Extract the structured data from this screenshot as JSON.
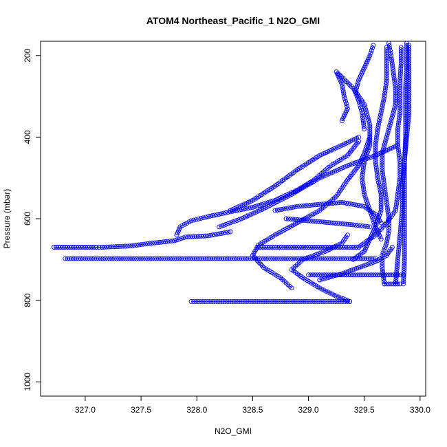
{
  "chart_data": {
    "type": "scatter",
    "title": "ATOM4 Northeast_Pacific_1 N2O_GMI",
    "xlabel": "N2O_GMI",
    "ylabel": "Pressure (mbar)",
    "xlim": [
      326.6,
      330.05
    ],
    "ylim": [
      1035,
      165
    ],
    "y_reversed": true,
    "x_ticks": [
      327.0,
      327.5,
      328.0,
      328.5,
      329.0,
      329.5,
      330.0
    ],
    "x_tick_labels": [
      "327.0",
      "327.5",
      "328.0",
      "328.5",
      "329.0",
      "329.5",
      "330.0"
    ],
    "y_ticks": [
      200,
      400,
      600,
      800,
      1000
    ],
    "y_tick_labels": [
      "200",
      "400",
      "600",
      "800",
      "1000"
    ],
    "color": "#0000ff",
    "marker": "open-circle",
    "grid": false,
    "legend": "none",
    "series": [
      {
        "points": [
          [
            327.15,
            670
          ],
          [
            327.1,
            670
          ],
          [
            327.0,
            670
          ],
          [
            326.9,
            670
          ],
          [
            326.78,
            670
          ],
          [
            326.72,
            670
          ]
        ]
      },
      {
        "points": [
          [
            327.15,
            670
          ],
          [
            327.4,
            667
          ],
          [
            327.6,
            660
          ],
          [
            327.8,
            654
          ],
          [
            327.9,
            645
          ],
          [
            328.1,
            642
          ],
          [
            328.3,
            632
          ]
        ]
      },
      {
        "points": [
          [
            327.82,
            640
          ],
          [
            327.85,
            620
          ],
          [
            327.95,
            605
          ],
          [
            328.1,
            595
          ],
          [
            328.3,
            583
          ],
          [
            328.5,
            572
          ],
          [
            328.7,
            555
          ],
          [
            328.9,
            530
          ],
          [
            329.05,
            505
          ],
          [
            329.2,
            470
          ],
          [
            329.35,
            445
          ],
          [
            329.45,
            410
          ]
        ]
      },
      {
        "points": [
          [
            328.3,
            580
          ],
          [
            328.5,
            555
          ],
          [
            328.7,
            520
          ],
          [
            328.9,
            480
          ],
          [
            329.1,
            445
          ],
          [
            329.3,
            420
          ],
          [
            329.45,
            400
          ]
        ]
      },
      {
        "points": [
          [
            328.2,
            620
          ],
          [
            328.4,
            600
          ],
          [
            328.6,
            575
          ],
          [
            328.85,
            540
          ],
          [
            329.1,
            500
          ],
          [
            329.35,
            470
          ],
          [
            329.6,
            445
          ],
          [
            329.8,
            420
          ]
        ]
      },
      {
        "points": [
          [
            326.82,
            698
          ],
          [
            327.2,
            698
          ],
          [
            327.6,
            698
          ],
          [
            328.0,
            698
          ],
          [
            328.4,
            698
          ],
          [
            328.8,
            698
          ],
          [
            329.2,
            698
          ],
          [
            329.6,
            698
          ]
        ]
      },
      {
        "points": [
          [
            327.95,
            803
          ],
          [
            328.2,
            803
          ],
          [
            328.5,
            803
          ],
          [
            328.8,
            803
          ],
          [
            329.1,
            803
          ],
          [
            329.37,
            803
          ]
        ]
      },
      {
        "points": [
          [
            329.37,
            803
          ],
          [
            329.25,
            790
          ],
          [
            329.1,
            770
          ],
          [
            328.95,
            745
          ],
          [
            328.85,
            725
          ],
          [
            328.95,
            700
          ],
          [
            329.15,
            680
          ],
          [
            329.3,
            660
          ],
          [
            329.35,
            640
          ]
        ]
      },
      {
        "points": [
          [
            328.85,
            770
          ],
          [
            328.75,
            745
          ],
          [
            328.6,
            720
          ],
          [
            328.5,
            690
          ],
          [
            328.55,
            665
          ],
          [
            328.7,
            640
          ],
          [
            328.9,
            610
          ],
          [
            329.1,
            580
          ],
          [
            329.25,
            545
          ],
          [
            329.35,
            505
          ],
          [
            329.45,
            470
          ],
          [
            329.5,
            440
          ],
          [
            329.55,
            400
          ]
        ]
      },
      {
        "points": [
          [
            328.55,
            670
          ],
          [
            328.8,
            670
          ],
          [
            329.0,
            670
          ],
          [
            329.2,
            670
          ],
          [
            329.45,
            670
          ]
        ]
      },
      {
        "points": [
          [
            329.45,
            670
          ],
          [
            329.6,
            640
          ],
          [
            329.7,
            610
          ],
          [
            329.78,
            580
          ],
          [
            329.8,
            540
          ],
          [
            329.82,
            500
          ],
          [
            329.82,
            460
          ],
          [
            329.8,
            420
          ],
          [
            329.8,
            380
          ],
          [
            329.82,
            340
          ],
          [
            329.82,
            300
          ],
          [
            329.82,
            260
          ],
          [
            329.83,
            220
          ],
          [
            329.83,
            180
          ]
        ]
      },
      {
        "points": [
          [
            329.0,
            738
          ],
          [
            329.2,
            738
          ],
          [
            329.4,
            738
          ],
          [
            329.6,
            738
          ],
          [
            329.8,
            738
          ],
          [
            329.85,
            738
          ]
        ]
      },
      {
        "points": [
          [
            329.68,
            760
          ],
          [
            329.72,
            760
          ],
          [
            329.78,
            760
          ],
          [
            329.82,
            760
          ]
        ]
      },
      {
        "points": [
          [
            329.68,
            760
          ],
          [
            329.66,
            720
          ],
          [
            329.66,
            690
          ],
          [
            329.7,
            660
          ],
          [
            329.72,
            630
          ],
          [
            329.72,
            600
          ],
          [
            329.7,
            560
          ],
          [
            329.68,
            520
          ],
          [
            329.66,
            480
          ],
          [
            329.66,
            440
          ],
          [
            329.7,
            400
          ],
          [
            329.74,
            360
          ],
          [
            329.78,
            320
          ],
          [
            329.78,
            280
          ],
          [
            329.76,
            240
          ],
          [
            329.74,
            200
          ],
          [
            329.72,
            170
          ]
        ]
      },
      {
        "points": [
          [
            329.85,
            760
          ],
          [
            329.86,
            700
          ],
          [
            329.86,
            640
          ],
          [
            329.86,
            580
          ],
          [
            329.86,
            520
          ],
          [
            329.86,
            460
          ],
          [
            329.87,
            400
          ],
          [
            329.87,
            340
          ],
          [
            329.87,
            280
          ],
          [
            329.88,
            220
          ],
          [
            329.88,
            170
          ]
        ]
      },
      {
        "points": [
          [
            329.78,
            760
          ],
          [
            329.8,
            700
          ],
          [
            329.82,
            640
          ],
          [
            329.84,
            580
          ],
          [
            329.84,
            520
          ],
          [
            329.86,
            460
          ],
          [
            329.88,
            400
          ],
          [
            329.9,
            340
          ],
          [
            329.9,
            280
          ],
          [
            329.9,
            220
          ],
          [
            329.9,
            175
          ]
        ]
      },
      {
        "points": [
          [
            329.4,
            700
          ],
          [
            329.5,
            680
          ],
          [
            329.55,
            650
          ],
          [
            329.6,
            620
          ],
          [
            329.65,
            580
          ],
          [
            329.65,
            540
          ],
          [
            329.62,
            500
          ],
          [
            329.6,
            460
          ],
          [
            329.6,
            420
          ],
          [
            329.62,
            380
          ],
          [
            329.65,
            340
          ],
          [
            329.68,
            300
          ],
          [
            329.7,
            260
          ],
          [
            329.7,
            220
          ],
          [
            329.7,
            180
          ]
        ]
      },
      {
        "points": [
          [
            329.3,
            360
          ],
          [
            329.35,
            330
          ],
          [
            329.32,
            300
          ],
          [
            329.3,
            270
          ],
          [
            329.25,
            240
          ],
          [
            329.4,
            280
          ],
          [
            329.5,
            320
          ],
          [
            329.55,
            370
          ],
          [
            329.55,
            420
          ],
          [
            329.5,
            460
          ],
          [
            329.48,
            500
          ],
          [
            329.5,
            540
          ],
          [
            329.55,
            580
          ],
          [
            329.6,
            620
          ],
          [
            329.65,
            650
          ]
        ]
      },
      {
        "points": [
          [
            329.5,
            380
          ],
          [
            329.48,
            340
          ],
          [
            329.45,
            310
          ],
          [
            329.42,
            290
          ],
          [
            329.45,
            260
          ],
          [
            329.5,
            230
          ],
          [
            329.55,
            200
          ],
          [
            329.58,
            175
          ]
        ]
      },
      {
        "points": [
          [
            328.7,
            580
          ],
          [
            328.9,
            570
          ],
          [
            329.1,
            565
          ],
          [
            329.3,
            560
          ],
          [
            329.5,
            570
          ],
          [
            329.6,
            590
          ],
          [
            329.65,
            610
          ]
        ]
      },
      {
        "points": [
          [
            328.8,
            600
          ],
          [
            329.0,
            605
          ],
          [
            329.2,
            610
          ],
          [
            329.4,
            615
          ],
          [
            329.55,
            620
          ]
        ]
      },
      {
        "points": [
          [
            329.1,
            750
          ],
          [
            329.3,
            735
          ],
          [
            329.45,
            720
          ],
          [
            329.6,
            705
          ],
          [
            329.7,
            690
          ],
          [
            329.75,
            670
          ]
        ]
      }
    ]
  }
}
